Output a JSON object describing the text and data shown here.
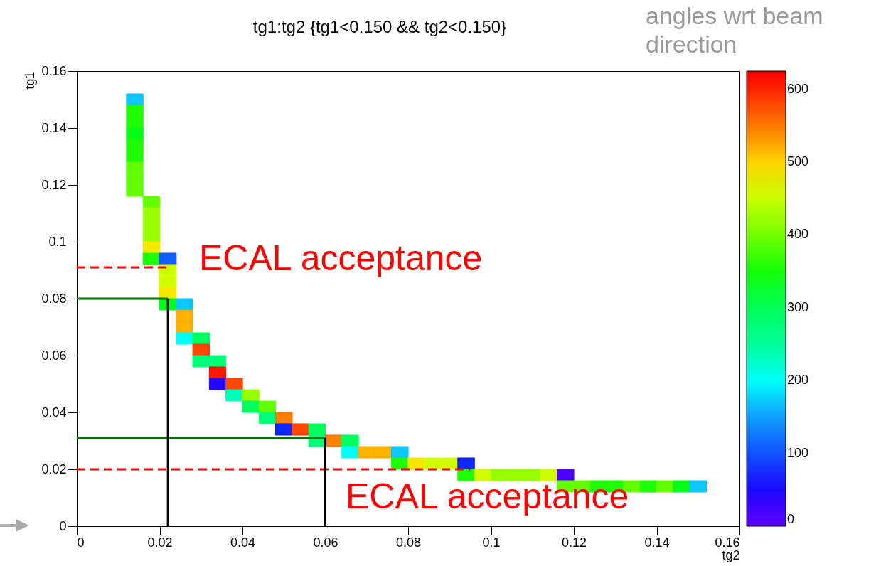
{
  "chart_data": {
    "type": "scatter",
    "title": "tg1:tg2 {tg1<0.150 && tg2<0.150}",
    "xlabel": "tg2",
    "ylabel": "tg1",
    "xlim": [
      0,
      0.16
    ],
    "ylim": [
      0,
      0.16
    ],
    "xticks": [
      0,
      0.02,
      0.04,
      0.06,
      0.08,
      0.1,
      0.12,
      0.14,
      0.16
    ],
    "yticks": [
      0,
      0.02,
      0.04,
      0.06,
      0.08,
      0.1,
      0.12,
      0.14,
      0.16
    ],
    "clim": [
      0,
      625
    ],
    "cticks": [
      0,
      100,
      200,
      300,
      400,
      500,
      600
    ],
    "annotations": [
      "angles wrt beam direction",
      "ECAL acceptance",
      "ECAL acceptance"
    ],
    "series": [
      {
        "marker": "square",
        "x": [
          0.014,
          0.014,
          0.014,
          0.014,
          0.014,
          0.014,
          0.014,
          0.014,
          0.014,
          0.018,
          0.018,
          0.018,
          0.018,
          0.018,
          0.018,
          0.022,
          0.022,
          0.022,
          0.022,
          0.022,
          0.026,
          0.026,
          0.026,
          0.026,
          0.03,
          0.03,
          0.03,
          0.034,
          0.034,
          0.034,
          0.038,
          0.038,
          0.042,
          0.042,
          0.046,
          0.046,
          0.05,
          0.05,
          0.054,
          0.058,
          0.058,
          0.062,
          0.066,
          0.066,
          0.07,
          0.074,
          0.078,
          0.078,
          0.082,
          0.086,
          0.09,
          0.094,
          0.094,
          0.098,
          0.102,
          0.106,
          0.11,
          0.114,
          0.118,
          0.118,
          0.122,
          0.126,
          0.13,
          0.134,
          0.138,
          0.142,
          0.146,
          0.15
        ],
        "values": [
          0.15,
          0.146,
          0.142,
          0.138,
          0.134,
          0.13,
          0.126,
          0.122,
          0.118,
          0.114,
          0.11,
          0.106,
          0.102,
          0.098,
          0.094,
          0.094,
          0.09,
          0.086,
          0.082,
          0.078,
          0.078,
          0.074,
          0.07,
          0.066,
          0.066,
          0.062,
          0.058,
          0.058,
          0.054,
          0.05,
          0.05,
          0.046,
          0.046,
          0.042,
          0.042,
          0.038,
          0.038,
          0.034,
          0.034,
          0.034,
          0.03,
          0.03,
          0.03,
          0.026,
          0.026,
          0.026,
          0.026,
          0.022,
          0.022,
          0.022,
          0.022,
          0.022,
          0.018,
          0.018,
          0.018,
          0.018,
          0.018,
          0.018,
          0.018,
          0.014,
          0.014,
          0.014,
          0.014,
          0.014,
          0.014,
          0.014,
          0.014,
          0.014
        ],
        "colors": [
          "#10b8ff",
          "#20ff00",
          "#20ff00",
          "#00ff16",
          "#20ff00",
          "#20ff00",
          "#6aff00",
          "#6aff00",
          "#6aff00",
          "#6aff00",
          "#a0ff00",
          "#a0ff00",
          "#a0ff00",
          "#ffe000",
          "#20ff00",
          "#1050ff",
          "#dcff00",
          "#dcff00",
          "#ffe000",
          "#00ff16",
          "#10b8ff",
          "#ffa000",
          "#ffa000",
          "#00ffff",
          "#00ff60",
          "#ff3000",
          "#00ff80",
          "#00ff80",
          "#ff0000",
          "#3000ff",
          "#ff3000",
          "#00ffc0",
          "#a0ff00",
          "#00ff60",
          "#6aff00",
          "#00ff80",
          "#ff6a00",
          "#0a10ff",
          "#ff3000",
          "#00ff60",
          "#00ff80",
          "#ff6a00",
          "#00ff60",
          "#00ffff",
          "#ffa000",
          "#ffa000",
          "#10b8ff",
          "#20ff00",
          "#ffe000",
          "#dcff00",
          "#dcff00",
          "#0a10ff",
          "#20ff00",
          "#dcff00",
          "#a0ff00",
          "#a0ff00",
          "#a0ff00",
          "#dcff00",
          "#6000ff",
          "#6aff00",
          "#6aff00",
          "#20ff00",
          "#20ff00",
          "#6aff00",
          "#20ff00",
          "#6aff00",
          "#00ff16",
          "#10b8ff"
        ],
        "cvalues": [
          172,
          359,
          359,
          328,
          359,
          359,
          391,
          391,
          391,
          391,
          422,
          422,
          422,
          484,
          359,
          109,
          453,
          453,
          484,
          328,
          172,
          516,
          516,
          203,
          297,
          578,
          273,
          273,
          609,
          47,
          578,
          234,
          422,
          297,
          391,
          273,
          547,
          78,
          578,
          297,
          273,
          547,
          297,
          203,
          516,
          516,
          172,
          359,
          484,
          453,
          453,
          78,
          359,
          453,
          422,
          422,
          422,
          453,
          16,
          391,
          391,
          359,
          359,
          391,
          359,
          391,
          328,
          172
        ]
      },
      {
        "type": "line",
        "color": "#ff0000",
        "line_style": "dashed",
        "x": [
          0,
          0.022
        ],
        "values": [
          0.091,
          0.091
        ]
      },
      {
        "type": "line",
        "color": "#ff0000",
        "line_style": "dashed",
        "x": [
          0,
          0.095
        ],
        "values": [
          0.02,
          0.02
        ]
      },
      {
        "type": "line",
        "color": "#007700",
        "line_style": "solid",
        "x": [
          0,
          0.022
        ],
        "values": [
          0.08,
          0.08
        ]
      },
      {
        "type": "line",
        "color": "#007700",
        "line_style": "solid",
        "x": [
          0,
          0.06
        ],
        "values": [
          0.031,
          0.031
        ]
      },
      {
        "type": "line",
        "color": "#000000",
        "line_style": "solid",
        "x": [
          0.022,
          0.022
        ],
        "values": [
          0.08,
          0
        ]
      },
      {
        "type": "line",
        "color": "#000000",
        "line_style": "solid",
        "x": [
          0.06,
          0.06
        ],
        "values": [
          0.031,
          0
        ]
      }
    ]
  }
}
